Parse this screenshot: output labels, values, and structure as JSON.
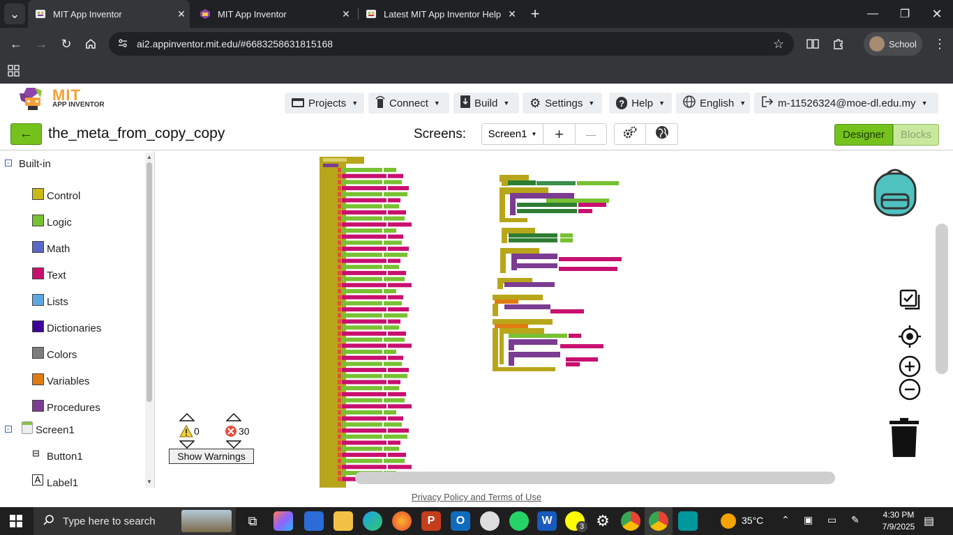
{
  "browser": {
    "tabs": [
      {
        "title": "MIT App Inventor",
        "active": true
      },
      {
        "title": "MIT App Inventor",
        "active": false
      },
      {
        "title": "Latest MIT App Inventor Help to",
        "active": false
      }
    ],
    "url": "ai2.appinventor.mit.edu/#6683258631815168",
    "profile_name": "School"
  },
  "app": {
    "logo_title": "MIT",
    "logo_subtitle": "APP INVENTOR",
    "menu": {
      "projects": "Projects",
      "connect": "Connect",
      "build": "Build",
      "settings": "Settings",
      "help": "Help",
      "language": "English",
      "account": "m-11526324@moe-dl.edu.my"
    },
    "project_name": "the_meta_from_copy_copy",
    "screens_label": "Screens:",
    "screen_selected": "Screen1",
    "add_screen": "+",
    "remove_screen": "—",
    "designer_label": "Designer",
    "blocks_label": "Blocks"
  },
  "palette": {
    "builtin_label": "Built-in",
    "builtin": [
      {
        "label": "Control",
        "color": "#c9b919"
      },
      {
        "label": "Logic",
        "color": "#77c132"
      },
      {
        "label": "Math",
        "color": "#5b67c6"
      },
      {
        "label": "Text",
        "color": "#c8106f"
      },
      {
        "label": "Lists",
        "color": "#5ea8e0"
      },
      {
        "label": "Dictionaries",
        "color": "#3d0099"
      },
      {
        "label": "Colors",
        "color": "#7d7d7d"
      },
      {
        "label": "Variables",
        "color": "#e07b14"
      },
      {
        "label": "Procedures",
        "color": "#7b3c91"
      }
    ],
    "screen_label": "Screen1",
    "components": [
      "Button1",
      "Label1"
    ]
  },
  "workspace": {
    "warnings_count": "0",
    "errors_count": "30",
    "show_warnings_label": "Show Warnings"
  },
  "footer": {
    "privacy": "Privacy Policy and Terms of Use"
  },
  "taskbar": {
    "search_placeholder": "Type here to search",
    "temperature": "35°C",
    "time": "4:30 PM",
    "date": "7/9/2025",
    "notifications": "3"
  }
}
